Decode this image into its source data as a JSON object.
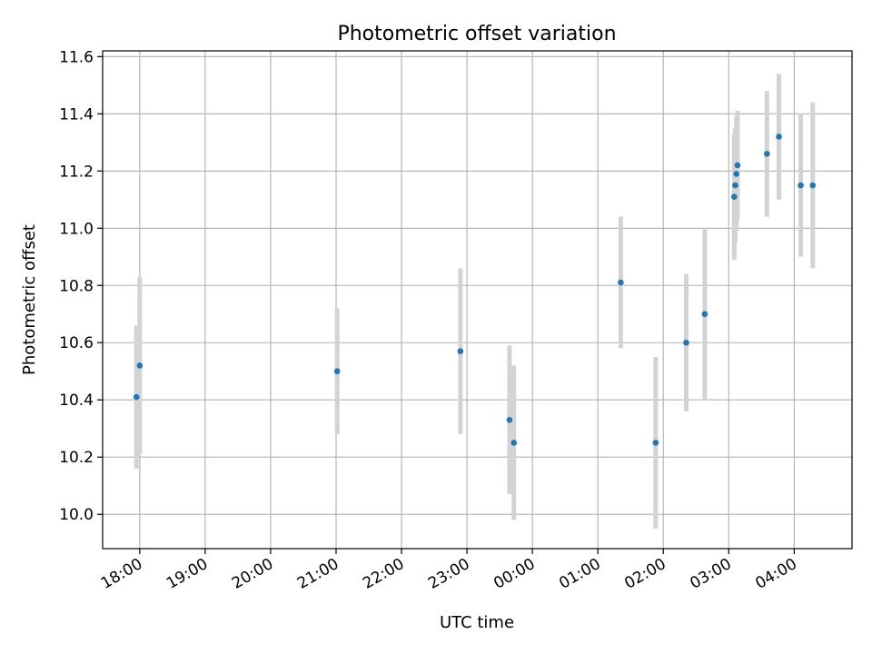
{
  "chart_data": {
    "type": "scatter",
    "title": "Photometric offset variation",
    "xlabel": "UTC time",
    "ylabel": "Photometric offset",
    "x_is_time": true,
    "x_axis_origin_note": "times are clock times starting the evening before; values after 24:00 belong to the next day",
    "xlim": [
      "17:26",
      "24+04:53"
    ],
    "ylim": [
      9.88,
      11.62
    ],
    "x_ticks": [
      "18:00",
      "19:00",
      "20:00",
      "21:00",
      "22:00",
      "23:00",
      "00:00",
      "01:00",
      "02:00",
      "03:00",
      "04:00"
    ],
    "y_ticks": [
      "10.0",
      "10.2",
      "10.4",
      "10.6",
      "10.8",
      "11.0",
      "11.2",
      "11.4",
      "11.6"
    ],
    "grid": true,
    "marker_color": "#1f77b4",
    "errorbar_color": "#d3d3d3",
    "points": [
      {
        "t": "17:57",
        "y": 10.41,
        "err": 0.25
      },
      {
        "t": "18:00",
        "y": 10.52,
        "err": 0.31
      },
      {
        "t": "21:01",
        "y": 10.5,
        "err": 0.22
      },
      {
        "t": "22:54",
        "y": 10.57,
        "err": 0.29
      },
      {
        "t": "23:39",
        "y": 10.33,
        "err": 0.26
      },
      {
        "t": "23:43",
        "y": 10.25,
        "err": 0.27
      },
      {
        "t": "01:21",
        "y": 10.81,
        "err": 0.23
      },
      {
        "t": "01:53",
        "y": 10.25,
        "err": 0.3
      },
      {
        "t": "02:21",
        "y": 10.6,
        "err": 0.24
      },
      {
        "t": "02:38",
        "y": 10.7,
        "err": 0.3
      },
      {
        "t": "03:05",
        "y": 11.11,
        "err": 0.22
      },
      {
        "t": "03:06",
        "y": 11.15,
        "err": 0.2
      },
      {
        "t": "03:07",
        "y": 11.19,
        "err": 0.2
      },
      {
        "t": "03:08",
        "y": 11.22,
        "err": 0.19
      },
      {
        "t": "03:35",
        "y": 11.26,
        "err": 0.22
      },
      {
        "t": "03:46",
        "y": 11.32,
        "err": 0.22
      },
      {
        "t": "04:06",
        "y": 11.15,
        "err": 0.25
      },
      {
        "t": "04:17",
        "y": 11.15,
        "err": 0.29
      }
    ]
  }
}
